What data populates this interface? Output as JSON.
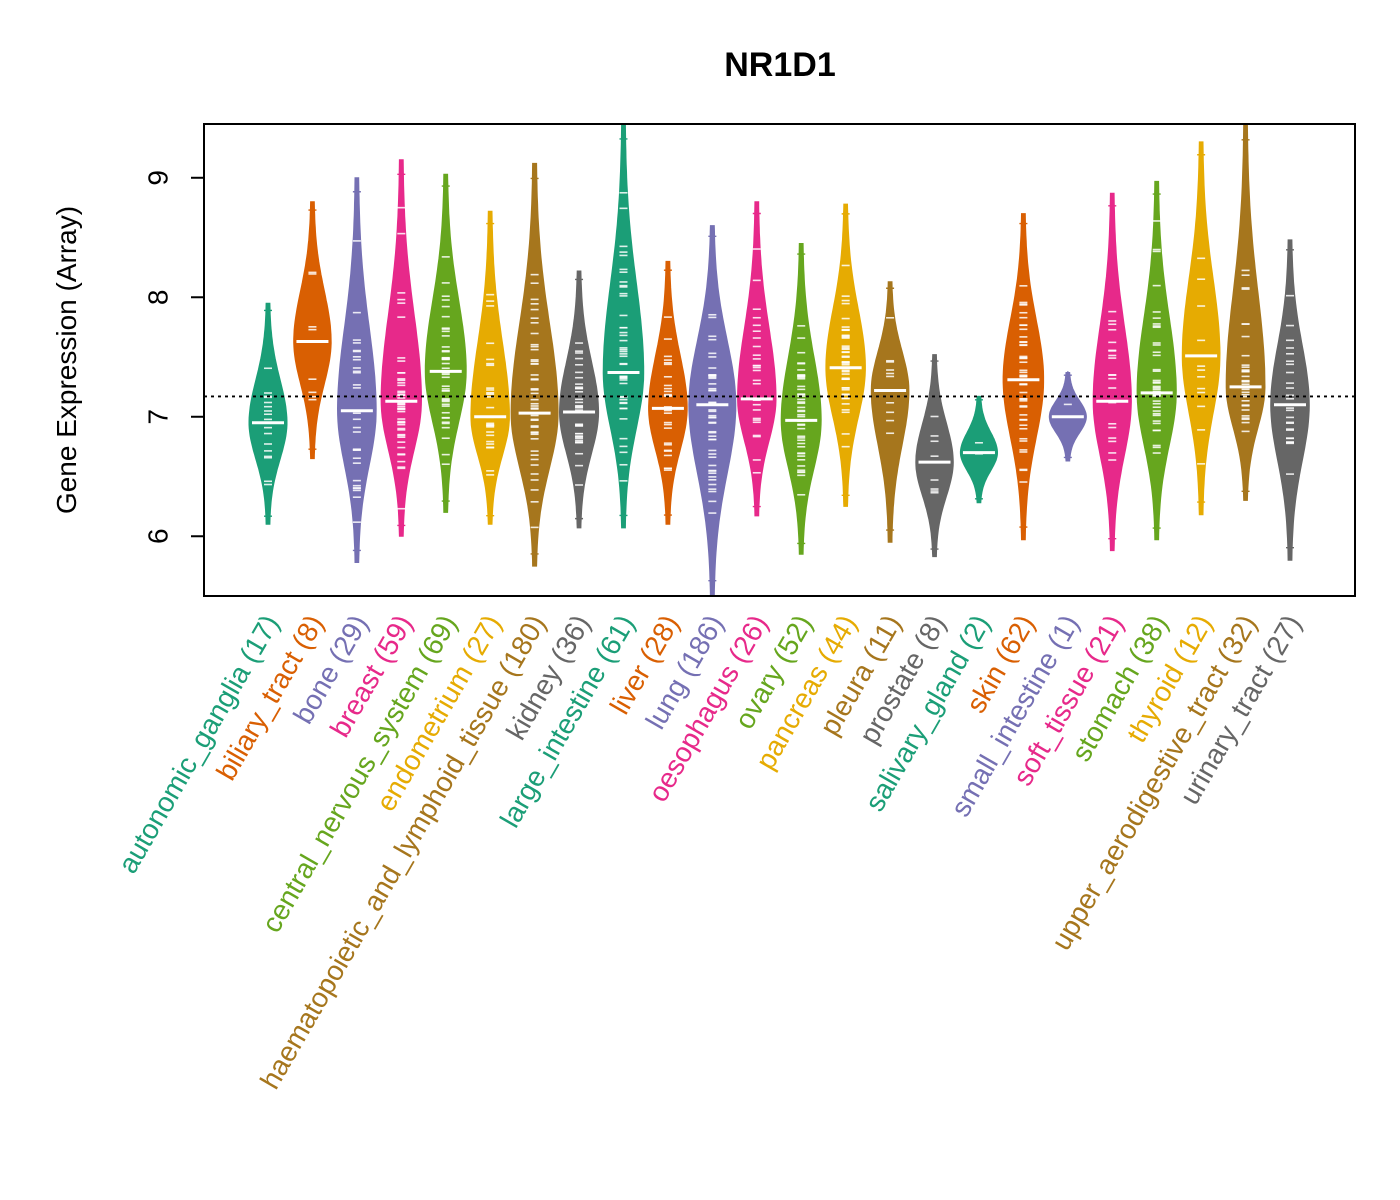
{
  "chart_data": {
    "type": "violin",
    "title": "NR1D1",
    "ylabel": "Gene Expression (Array)",
    "xlabel": "",
    "ylim": [
      5.5,
      9.45
    ],
    "yticks": [
      6,
      7,
      8,
      9
    ],
    "reference_line": 7.17,
    "grid": false,
    "legend": "none",
    "categories": [
      {
        "label": "autonomic_ganglia (17)",
        "color": "#1B9E77",
        "min": 6.1,
        "max": 7.95,
        "median": 6.95
      },
      {
        "label": "biliary_tract (8)",
        "color": "#D95F02",
        "min": 6.65,
        "max": 8.8,
        "median": 7.63
      },
      {
        "label": "bone (29)",
        "color": "#7570B3",
        "min": 5.78,
        "max": 9.0,
        "median": 7.05
      },
      {
        "label": "breast (59)",
        "color": "#E7298A",
        "min": 6.0,
        "max": 9.15,
        "median": 7.13
      },
      {
        "label": "central_nervous_system (69)",
        "color": "#66A61E",
        "min": 6.2,
        "max": 9.03,
        "median": 7.38
      },
      {
        "label": "endometrium (27)",
        "color": "#E6AB02",
        "min": 6.1,
        "max": 8.72,
        "median": 7.0
      },
      {
        "label": "haematopoietic_and_lymphoid_tissue (180)",
        "color": "#A6761D",
        "min": 5.75,
        "max": 9.12,
        "median": 7.03
      },
      {
        "label": "kidney (36)",
        "color": "#666666",
        "min": 6.07,
        "max": 8.22,
        "median": 7.04
      },
      {
        "label": "large_intestine (61)",
        "color": "#1B9E77",
        "min": 6.07,
        "max": 9.45,
        "median": 7.37
      },
      {
        "label": "liver (28)",
        "color": "#D95F02",
        "min": 6.1,
        "max": 8.3,
        "median": 7.07
      },
      {
        "label": "lung (186)",
        "color": "#7570B3",
        "min": 5.5,
        "max": 8.6,
        "median": 7.1
      },
      {
        "label": "oesophagus (26)",
        "color": "#E7298A",
        "min": 6.17,
        "max": 8.8,
        "median": 7.15
      },
      {
        "label": "ovary (52)",
        "color": "#66A61E",
        "min": 5.85,
        "max": 8.45,
        "median": 6.97
      },
      {
        "label": "pancreas (44)",
        "color": "#E6AB02",
        "min": 6.25,
        "max": 8.78,
        "median": 7.41
      },
      {
        "label": "pleura (11)",
        "color": "#A6761D",
        "min": 5.95,
        "max": 8.13,
        "median": 7.22
      },
      {
        "label": "prostate (8)",
        "color": "#666666",
        "min": 5.83,
        "max": 7.52,
        "median": 6.62
      },
      {
        "label": "salivary_gland (2)",
        "color": "#1B9E77",
        "min": 6.28,
        "max": 7.17,
        "median": 6.7
      },
      {
        "label": "skin (62)",
        "color": "#D95F02",
        "min": 5.97,
        "max": 8.7,
        "median": 7.31
      },
      {
        "label": "small_intestine (1)",
        "color": "#7570B3",
        "min": 6.63,
        "max": 7.37,
        "median": 7.0
      },
      {
        "label": "soft_tissue (21)",
        "color": "#E7298A",
        "min": 5.88,
        "max": 8.87,
        "median": 7.13
      },
      {
        "label": "stomach (38)",
        "color": "#66A61E",
        "min": 5.97,
        "max": 8.97,
        "median": 7.2
      },
      {
        "label": "thyroid (12)",
        "color": "#E6AB02",
        "min": 6.18,
        "max": 9.3,
        "median": 7.51
      },
      {
        "label": "upper_aerodigestive_tract (32)",
        "color": "#A6761D",
        "min": 6.3,
        "max": 9.45,
        "median": 7.25
      },
      {
        "label": "urinary_tract (27)",
        "color": "#666666",
        "min": 5.8,
        "max": 8.48,
        "median": 7.1
      }
    ]
  }
}
